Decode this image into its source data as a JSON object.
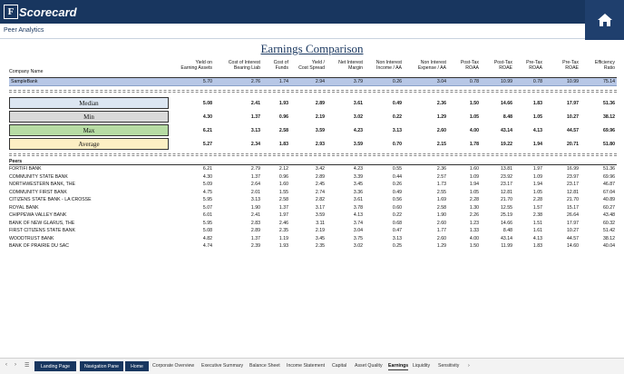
{
  "app": {
    "logo_letter": "F",
    "logo_text": "Scorecard",
    "breadcrumb": "Peer Analytics"
  },
  "page_title": "Earnings Comparison",
  "headers": {
    "company": "Company Name",
    "c1": [
      "Yield on",
      "Earning Assets"
    ],
    "c2": [
      "Cost of Interest",
      "Bearing Liab"
    ],
    "c3": [
      "Cost of",
      "Funds"
    ],
    "c4": [
      "Yield /",
      "Cost Spread"
    ],
    "c5": [
      "Net Interest",
      "Margin"
    ],
    "c6": [
      "Non Interest",
      "Income / AA"
    ],
    "c7": [
      "Non Interest",
      "Expense / AA"
    ],
    "c8": [
      "Post-Tax",
      "ROAA"
    ],
    "c9": [
      "Post-Tax",
      "ROAE"
    ],
    "c10": [
      "Pre-Tax",
      "ROAA"
    ],
    "c11": [
      "Pre-Tax",
      "ROAE"
    ],
    "c12": [
      "Efficiency",
      "Ratio"
    ]
  },
  "sample": {
    "name": "SampleBank",
    "values": [
      "5.70",
      "2.76",
      "1.74",
      "2.94",
      "3.79",
      "0.26",
      "3.04",
      "0.78",
      "10.99",
      "0.78",
      "10.99",
      "75.14"
    ]
  },
  "stats": [
    {
      "label": "Median",
      "color": "#dce6f2",
      "values": [
        "5.08",
        "2.41",
        "1.93",
        "2.89",
        "3.61",
        "0.49",
        "2.36",
        "1.50",
        "14.66",
        "1.83",
        "17.97",
        "51.36"
      ]
    },
    {
      "label": "Min",
      "color": "#d9d9d9",
      "values": [
        "4.30",
        "1.37",
        "0.96",
        "2.19",
        "3.02",
        "0.22",
        "1.29",
        "1.05",
        "8.48",
        "1.05",
        "10.27",
        "38.12"
      ]
    },
    {
      "label": "Max",
      "color": "#b7dca4",
      "values": [
        "6.21",
        "3.13",
        "2.58",
        "3.59",
        "4.23",
        "3.13",
        "2.60",
        "4.00",
        "43.14",
        "4.13",
        "44.57",
        "69.96"
      ]
    },
    {
      "label": "Average",
      "color": "#fdefc4",
      "values": [
        "5.27",
        "2.34",
        "1.83",
        "2.93",
        "3.59",
        "0.70",
        "2.15",
        "1.78",
        "19.22",
        "1.94",
        "20.71",
        "51.80"
      ]
    }
  ],
  "peers_title": "Peers",
  "peers": [
    {
      "name": "FORTIFI BANK",
      "values": [
        "6.21",
        "2.79",
        "2.12",
        "3.42",
        "4.23",
        "0.55",
        "2.36",
        "1.60",
        "13.81",
        "1.97",
        "16.99",
        "51.36"
      ]
    },
    {
      "name": "COMMUNITY STATE BANK",
      "values": [
        "4.30",
        "1.37",
        "0.96",
        "2.89",
        "3.39",
        "0.44",
        "2.57",
        "1.09",
        "23.92",
        "1.09",
        "23.97",
        "69.96"
      ]
    },
    {
      "name": "NORTHWESTERN BANK, THE",
      "values": [
        "5.09",
        "2.64",
        "1.60",
        "2.45",
        "3.45",
        "0.26",
        "1.73",
        "1.94",
        "23.17",
        "1.94",
        "23.17",
        "46.87"
      ]
    },
    {
      "name": "COMMUNITY FIRST BANK",
      "values": [
        "4.75",
        "2.01",
        "1.55",
        "2.74",
        "3.36",
        "0.49",
        "2.55",
        "1.05",
        "12.81",
        "1.05",
        "12.81",
        "67.04"
      ]
    },
    {
      "name": "CITIZENS STATE BANK - LA CROSSE",
      "values": [
        "5.95",
        "3.13",
        "2.58",
        "2.82",
        "3.61",
        "0.56",
        "1.69",
        "2.28",
        "21.70",
        "2.28",
        "21.70",
        "40.89"
      ]
    },
    {
      "name": "ROYAL BANK",
      "values": [
        "5.07",
        "1.90",
        "1.37",
        "3.17",
        "3.78",
        "0.60",
        "2.58",
        "1.30",
        "12.55",
        "1.57",
        "15.17",
        "60.27"
      ]
    },
    {
      "name": "CHIPPEWA VALLEY BANK",
      "values": [
        "6.01",
        "2.41",
        "1.97",
        "3.59",
        "4.13",
        "0.22",
        "1.90",
        "2.26",
        "25.19",
        "2.38",
        "26.64",
        "43.48"
      ]
    },
    {
      "name": "BANK OF NEW GLARUS, THE",
      "values": [
        "5.95",
        "2.83",
        "2.46",
        "3.11",
        "3.74",
        "0.68",
        "2.60",
        "1.23",
        "14.66",
        "1.51",
        "17.97",
        "60.32"
      ]
    },
    {
      "name": "FIRST CITIZENS STATE BANK",
      "values": [
        "5.08",
        "2.89",
        "2.35",
        "2.19",
        "3.04",
        "0.47",
        "1.77",
        "1.33",
        "8.48",
        "1.61",
        "10.27",
        "51.42"
      ]
    },
    {
      "name": "WOODTRUST BANK",
      "values": [
        "4.82",
        "1.37",
        "1.19",
        "3.45",
        "3.75",
        "3.13",
        "2.60",
        "4.00",
        "43.14",
        "4.13",
        "44.57",
        "38.12"
      ]
    },
    {
      "name": "BANK OF PRAIRIE DU SAC",
      "values": [
        "4.74",
        "2.39",
        "1.93",
        "2.35",
        "3.02",
        "0.25",
        "1.29",
        "1.50",
        "11.99",
        "1.83",
        "14.60",
        "40.04"
      ]
    }
  ],
  "tabs": {
    "dark": [
      "Landing Page",
      "Navigation Pane",
      "Home"
    ],
    "plain": [
      "Corporate Overview",
      "Executive Summary",
      "Balance Sheet",
      "Income Statement",
      "Capital",
      "Asset Quality",
      "Earnings",
      "Liquidity",
      "Sensitivity"
    ],
    "active": "Earnings",
    "nav_prev": "‹",
    "nav_next": "›",
    "nav_menu": "☰",
    "more": "›"
  },
  "colors": {
    "topbar": "#18365f",
    "accent": "#18365f",
    "sample_row": "#b7c7e6"
  }
}
